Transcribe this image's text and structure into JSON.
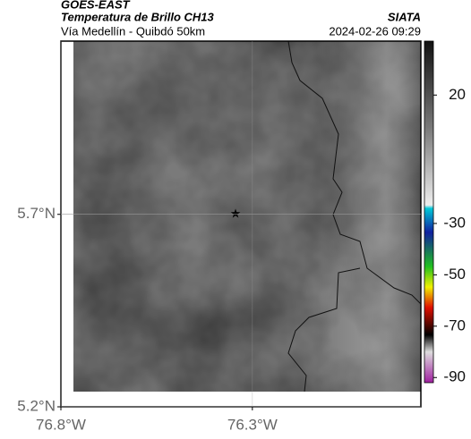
{
  "header": {
    "satellite": "GOES-EAST",
    "product": "Temperatura de Brillo CH13",
    "route": "Vía Medellín - Quibdó 50km",
    "source": "SIATA",
    "timestamp": "2024-02-26 09:29"
  },
  "map": {
    "xlim": [
      -76.8,
      -75.86
    ],
    "ylim": [
      5.2,
      6.15
    ],
    "xticks": [
      {
        "value": -76.8,
        "label": "76.8°W"
      },
      {
        "value": -76.3,
        "label": "76.3°W"
      }
    ],
    "yticks": [
      {
        "value": 5.2,
        "label": "5.2°N"
      },
      {
        "value": 5.7,
        "label": "5.7°N"
      }
    ],
    "grid": true
  },
  "colorbar": {
    "clim": [
      -92,
      41
    ],
    "ticks": [
      20,
      -30,
      -50,
      -70,
      -90
    ]
  }
}
